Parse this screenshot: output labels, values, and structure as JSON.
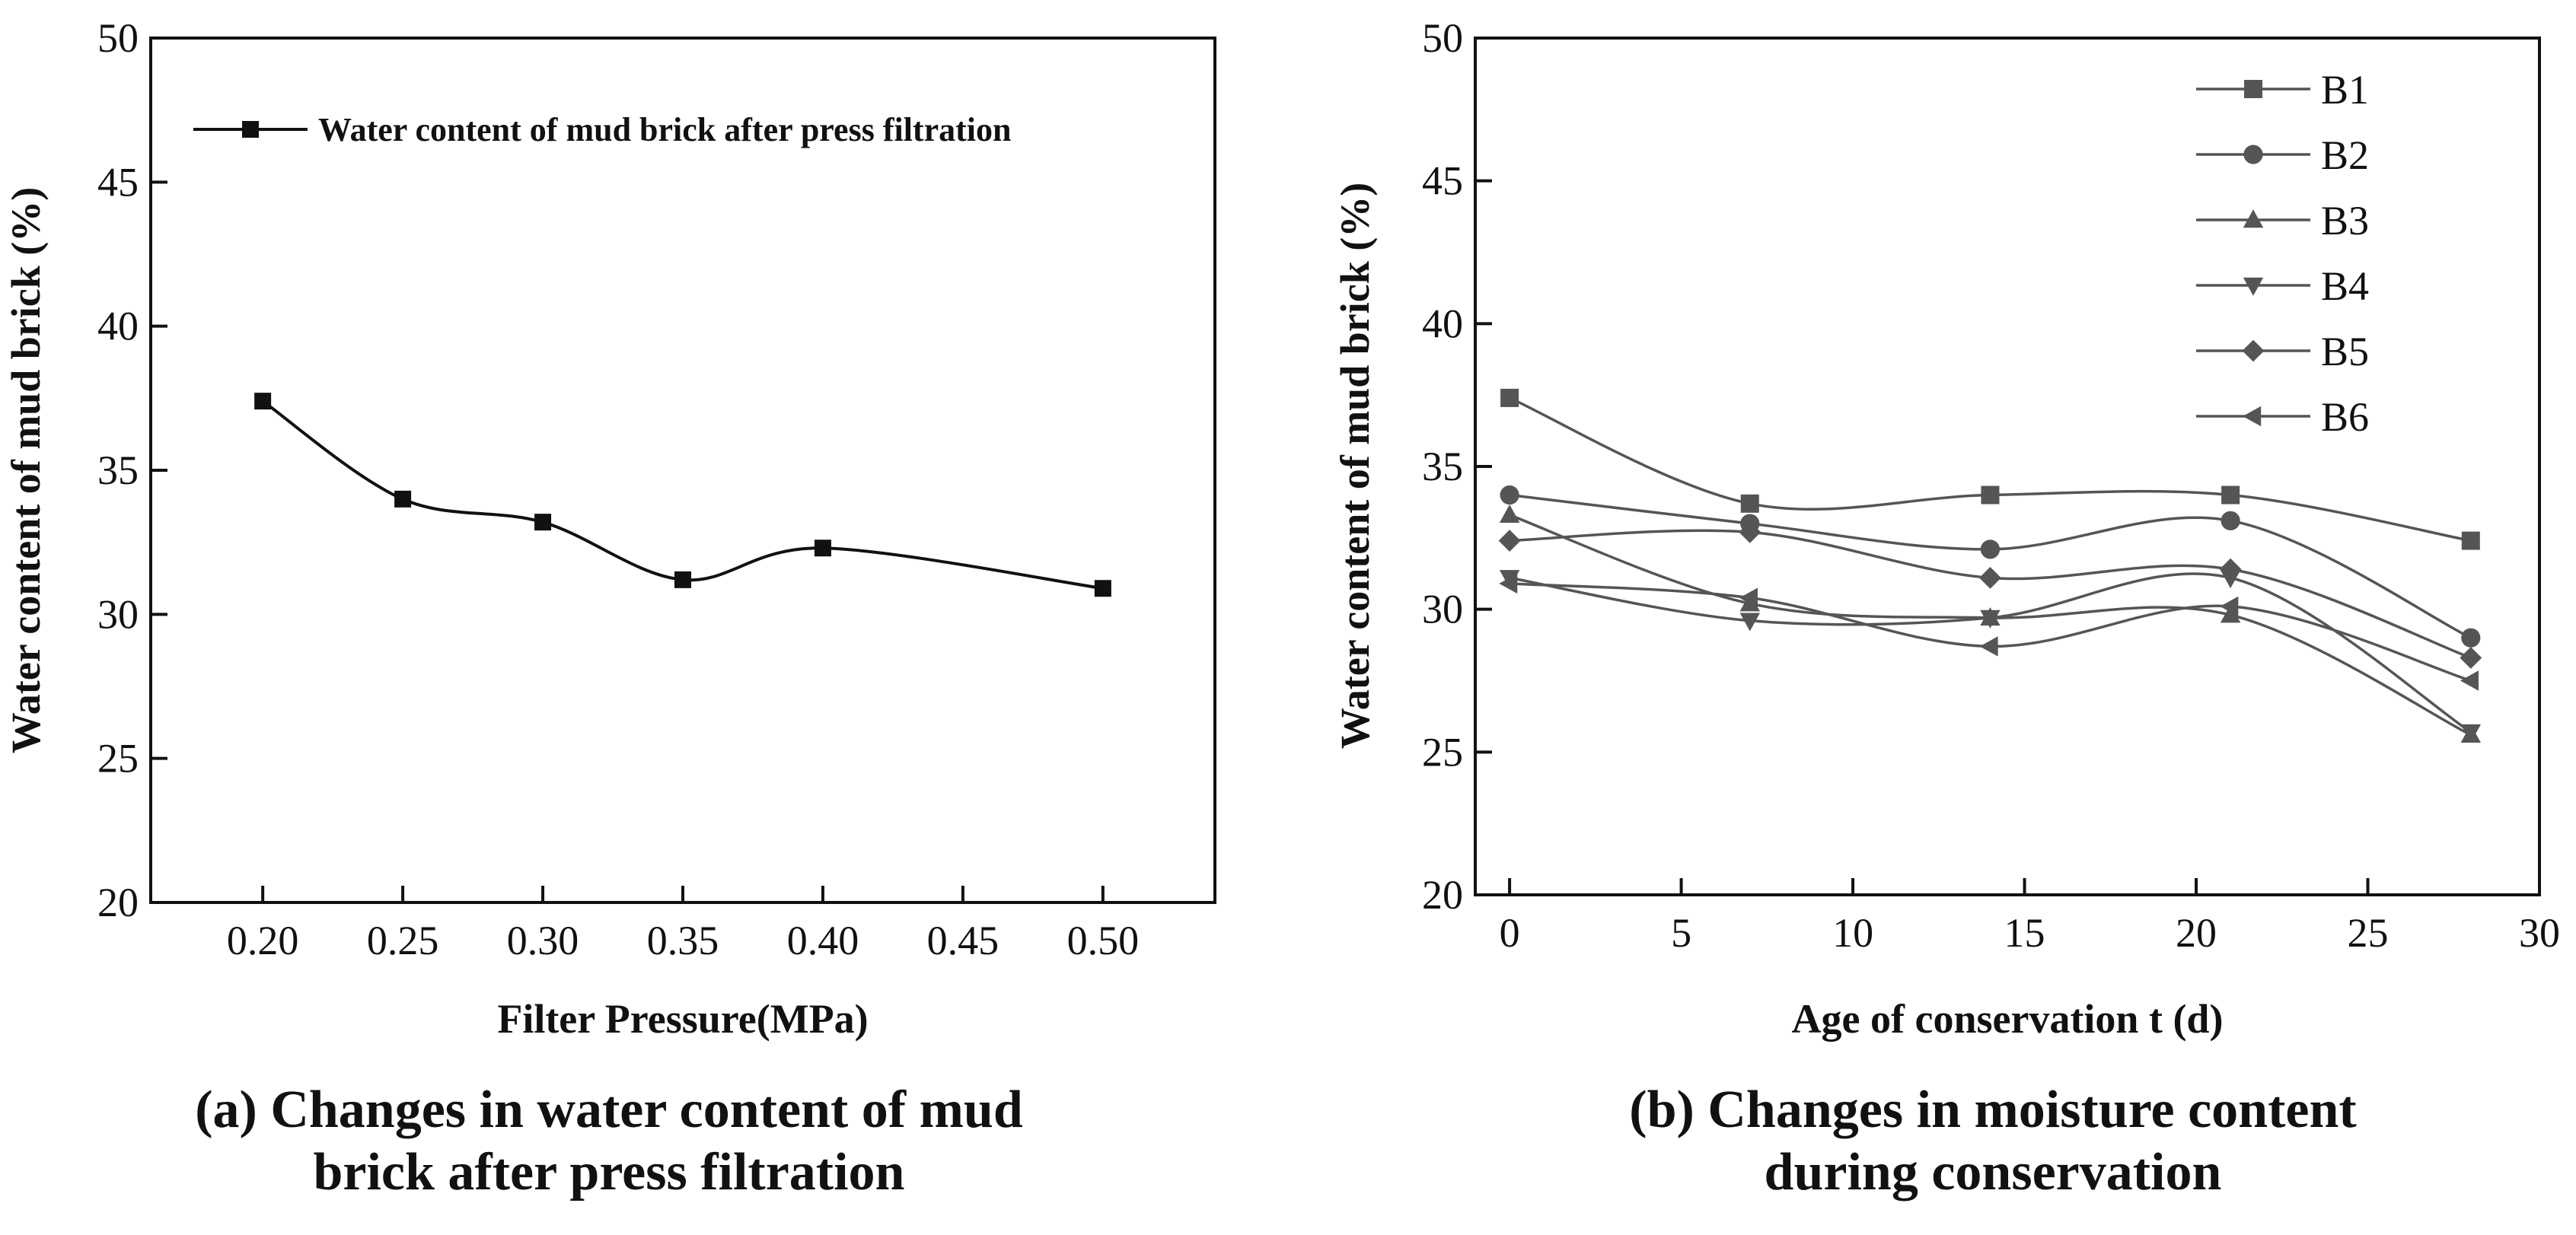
{
  "chart_data": [
    {
      "type": "line",
      "panel": "a",
      "caption": [
        "(a) Changes in water content of mud",
        "brick after press filtration"
      ],
      "xlabel": "Filter Pressure(MPa)",
      "ylabel": "Water content of mud brick (%)",
      "x_ticks": [
        "0.20",
        "0.25",
        "0.30",
        "0.35",
        "0.40",
        "0.45",
        "0.50"
      ],
      "y_ticks": [
        "20",
        "25",
        "30",
        "35",
        "40",
        "45",
        "50"
      ],
      "xlim": [
        0.16,
        0.54
      ],
      "ylim": [
        20,
        50
      ],
      "legend_position": "top",
      "grid": false,
      "series": [
        {
          "name": "Water content of mud brick after press filtration",
          "marker": "square",
          "color": "#111111",
          "x": [
            0.2,
            0.25,
            0.3,
            0.35,
            0.4,
            0.5
          ],
          "y": [
            37.4,
            34.0,
            33.2,
            31.2,
            32.3,
            30.9
          ]
        }
      ]
    },
    {
      "type": "line",
      "panel": "b",
      "caption": [
        "(b) Changes in moisture content",
        "during conservation"
      ],
      "xlabel": "Age of conservation t (d)",
      "ylabel": "Water content of mud brick (%)",
      "x_ticks": [
        "0",
        "5",
        "10",
        "15",
        "20",
        "25",
        "30"
      ],
      "y_ticks": [
        "20",
        "25",
        "30",
        "35",
        "40",
        "45",
        "50"
      ],
      "xlim": [
        -1,
        30
      ],
      "ylim": [
        20,
        50
      ],
      "legend_position": "top-right",
      "grid": false,
      "series": [
        {
          "name": "B1",
          "marker": "square",
          "color": "#555555",
          "x": [
            0,
            7,
            14,
            21,
            28
          ],
          "y": [
            37.4,
            33.7,
            34.0,
            34.0,
            32.4
          ]
        },
        {
          "name": "B2",
          "marker": "circle",
          "color": "#555555",
          "x": [
            0,
            7,
            14,
            21,
            28
          ],
          "y": [
            34.0,
            33.0,
            32.1,
            33.1,
            29.0
          ]
        },
        {
          "name": "B3",
          "marker": "triangle-up",
          "color": "#555555",
          "x": [
            0,
            7,
            14,
            21,
            28
          ],
          "y": [
            33.3,
            30.2,
            29.7,
            29.8,
            25.6
          ]
        },
        {
          "name": "B4",
          "marker": "triangle-down",
          "color": "#555555",
          "x": [
            0,
            7,
            14,
            21,
            28
          ],
          "y": [
            31.1,
            29.6,
            29.7,
            31.1,
            25.7
          ]
        },
        {
          "name": "B5",
          "marker": "diamond",
          "color": "#555555",
          "x": [
            0,
            7,
            14,
            21,
            28
          ],
          "y": [
            32.4,
            32.7,
            31.1,
            31.4,
            28.3
          ]
        },
        {
          "name": "B6",
          "marker": "triangle-left",
          "color": "#555555",
          "x": [
            0,
            7,
            14,
            21,
            28
          ],
          "y": [
            30.9,
            30.4,
            28.7,
            30.1,
            27.5
          ]
        }
      ]
    }
  ]
}
